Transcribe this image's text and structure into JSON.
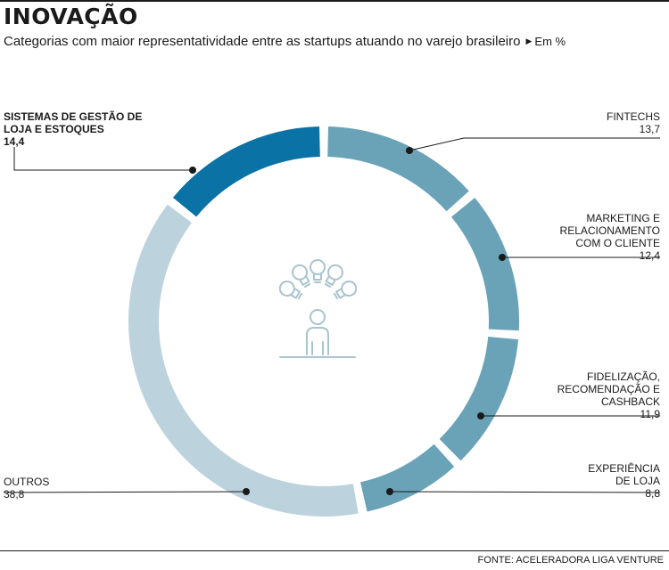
{
  "header": {
    "title": "INOVAÇÃO",
    "subtitle": "Categorias com maior representatividade entre as startups atuando no varejo brasileiro",
    "unit": "Em %"
  },
  "source": "FONTE: ACELERADORA LIGA VENTURE",
  "colors": {
    "highlight": "#0b72a6",
    "mid": "#6aa3b8",
    "light": "#bcd3de",
    "icon": "#a9c4cf"
  },
  "icon": "idea-person-icon",
  "chart_data": {
    "type": "pie",
    "style": "donut",
    "unit": "%",
    "slices": [
      {
        "name": "Fintechs",
        "value": 13.7,
        "value_label": "13,7",
        "color": "#6aa3b8"
      },
      {
        "name": "Marketing e relacionamento com o cliente",
        "value": 12.4,
        "value_label": "12,4",
        "color": "#6aa3b8"
      },
      {
        "name": "Fidelização, recomendação e cashback",
        "value": 11.9,
        "value_label": "11,9",
        "color": "#6aa3b8"
      },
      {
        "name": "Experiência de loja",
        "value": 8.8,
        "value_label": "8,8",
        "color": "#6aa3b8"
      },
      {
        "name": "Outros",
        "value": 38.8,
        "value_label": "38,8",
        "color": "#bcd3de"
      },
      {
        "name": "Sistemas de gestão de loja e estoques",
        "value": 14.4,
        "value_label": "14,4",
        "color": "#0b72a6"
      }
    ]
  },
  "labels": [
    {
      "name": "Fintechs",
      "value": "13,7"
    },
    {
      "name": "Marketing e\nrelacionamento\ncom o cliente",
      "value": "12,4"
    },
    {
      "name": "Fidelização,\nrecomendação e\ncashback",
      "value": "11,9"
    },
    {
      "name": "Experiência\nde loja",
      "value": "8,8"
    },
    {
      "name": "Outros",
      "value": "38,8"
    },
    {
      "name": "Sistemas de gestão de\nloja e estoques",
      "value": "14,4"
    }
  ]
}
